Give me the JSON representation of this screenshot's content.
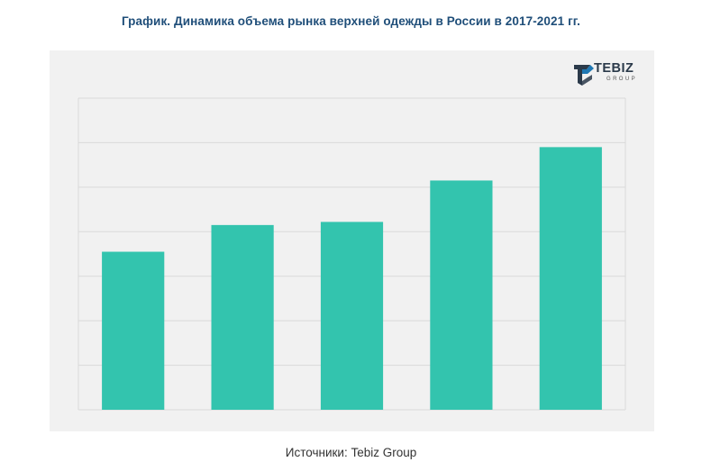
{
  "title": "График. Динамика объема рынка верхней одежды в России в 2017-2021 гг.",
  "source": "Источники: Tebiz Group",
  "logo": {
    "name": "TEBIZ",
    "sub": "GROUP",
    "icon": "tebiz-logo-icon"
  },
  "colors": {
    "bar": "#33c4ae",
    "title": "#1f4e79",
    "panel": "#f1f1f1",
    "grid": "#d9d9d9"
  },
  "chart_data": {
    "type": "bar",
    "categories": [
      "",
      "",
      "",
      "",
      ""
    ],
    "values": [
      3.55,
      4.15,
      4.22,
      5.15,
      5.9
    ],
    "title": "График. Динамика объема рынка верхней одежды в России в 2017-2021 гг.",
    "xlabel": "",
    "ylabel": "",
    "ylim": [
      0,
      7
    ],
    "grid": true,
    "legend": "none"
  }
}
